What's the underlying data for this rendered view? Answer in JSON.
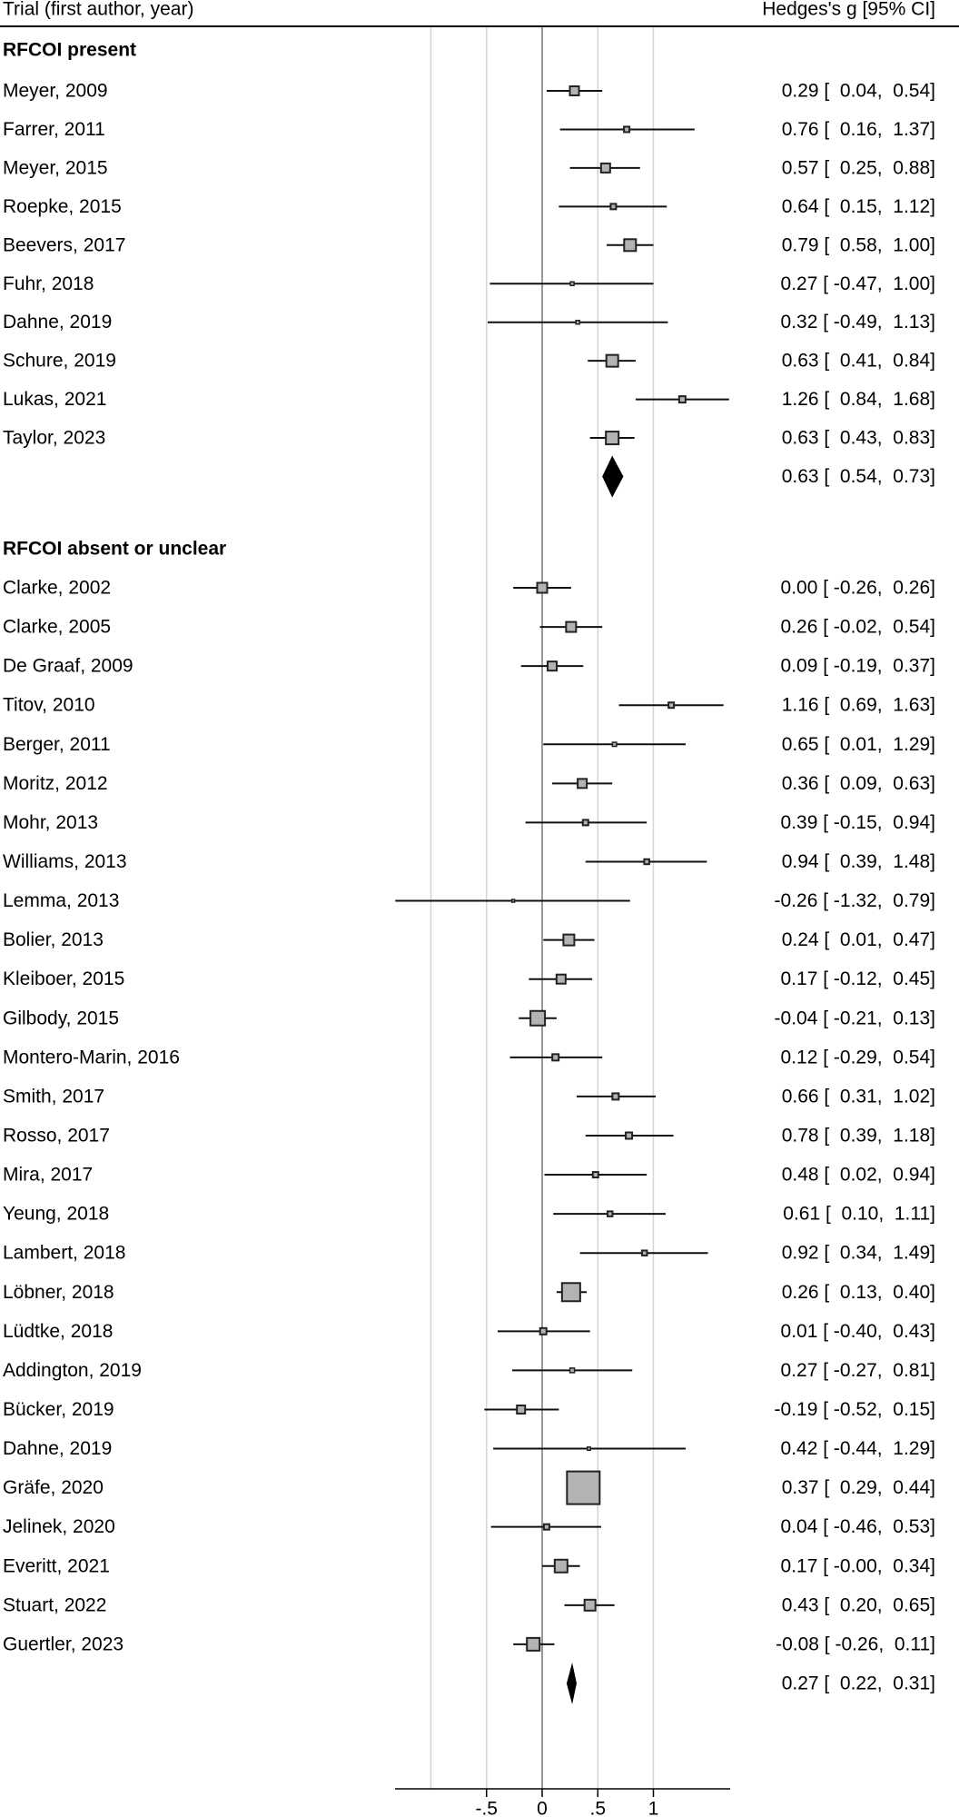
{
  "chart_data": {
    "type": "forest",
    "header": {
      "left": "Trial (first author, year)",
      "right": "Hedges's g [95% CI]"
    },
    "xlim": [
      -1.0,
      1.7
    ],
    "xticks": [
      -0.5,
      0,
      0.5,
      1
    ],
    "xtick_labels": [
      "-.5",
      "0",
      ".5",
      "1"
    ],
    "gridlines": [
      -1,
      -0.5,
      0.5,
      1
    ],
    "reference_line": 0,
    "colors": {
      "box": "#b3b3b3",
      "box_border": "#222222",
      "grid": "#d4d4d4",
      "ref": "#777777",
      "diamond": "#000000"
    },
    "groups": [
      {
        "label": "RFCOI present",
        "studies": [
          {
            "name": "Meyer, 2009",
            "g": 0.29,
            "lo": 0.04,
            "hi": 0.54,
            "ci_text": "0.29 [  0.04,  0.54]",
            "weight_rel": 1.0
          },
          {
            "name": "Farrer, 2011",
            "g": 0.76,
            "lo": 0.16,
            "hi": 1.37,
            "ci_text": "0.76 [  0.16,  1.37]",
            "weight_rel": 0.36
          },
          {
            "name": "Meyer, 2015",
            "g": 0.57,
            "lo": 0.25,
            "hi": 0.88,
            "ci_text": "0.57 [  0.25,  0.88]",
            "weight_rel": 1.0
          },
          {
            "name": "Roepke, 2015",
            "g": 0.64,
            "lo": 0.15,
            "hi": 1.12,
            "ci_text": "0.64 [  0.15,  1.12]",
            "weight_rel": 0.36
          },
          {
            "name": "Beevers, 2017",
            "g": 0.79,
            "lo": 0.58,
            "hi": 1.0,
            "ci_text": "0.79 [  0.58,  1.00]",
            "weight_rel": 1.69
          },
          {
            "name": "Fuhr, 2018",
            "g": 0.27,
            "lo": -0.47,
            "hi": 1.0,
            "ci_text": "0.27 [ -0.47,  1.00]",
            "weight_rel": 0.16
          },
          {
            "name": "Dahne, 2019",
            "g": 0.32,
            "lo": -0.49,
            "hi": 1.13,
            "ci_text": "0.32 [ -0.49,  1.13]",
            "weight_rel": 0.16
          },
          {
            "name": "Schure, 2019",
            "g": 0.63,
            "lo": 0.41,
            "hi": 0.84,
            "ci_text": "0.63 [  0.41,  0.84]",
            "weight_rel": 1.69
          },
          {
            "name": "Lukas, 2021",
            "g": 1.26,
            "lo": 0.84,
            "hi": 1.68,
            "ci_text": "1.26 [  0.84,  1.68]",
            "weight_rel": 0.49
          },
          {
            "name": "Taylor, 2023",
            "g": 0.63,
            "lo": 0.43,
            "hi": 0.83,
            "ci_text": "0.63 [  0.43,  0.83]",
            "weight_rel": 1.96
          }
        ],
        "pooled": {
          "g": 0.63,
          "lo": 0.54,
          "hi": 0.73,
          "ci_text": "0.63 [  0.54,  0.73]"
        }
      },
      {
        "label": "RFCOI absent or unclear",
        "studies": [
          {
            "name": "Clarke, 2002",
            "g": 0.0,
            "lo": -0.26,
            "hi": 0.26,
            "ci_text": "0.00 [ -0.26,  0.26]",
            "weight_rel": 1.21
          },
          {
            "name": "Clarke, 2005",
            "g": 0.26,
            "lo": -0.02,
            "hi": 0.54,
            "ci_text": "0.26 [ -0.02,  0.54]",
            "weight_rel": 1.21
          },
          {
            "name": "De Graaf, 2009",
            "g": 0.09,
            "lo": -0.19,
            "hi": 0.37,
            "ci_text": "0.09 [ -0.19,  0.37]",
            "weight_rel": 1.0
          },
          {
            "name": "Titov, 2010",
            "g": 1.16,
            "lo": 0.69,
            "hi": 1.63,
            "ci_text": "1.16 [  0.69,  1.63]",
            "weight_rel": 0.36
          },
          {
            "name": "Berger, 2011",
            "g": 0.65,
            "lo": 0.01,
            "hi": 1.29,
            "ci_text": "0.65 [  0.01,  1.29]",
            "weight_rel": 0.2
          },
          {
            "name": "Moritz, 2012",
            "g": 0.36,
            "lo": 0.09,
            "hi": 0.63,
            "ci_text": "0.36 [  0.09,  0.63]",
            "weight_rel": 1.0
          },
          {
            "name": "Mohr, 2013",
            "g": 0.39,
            "lo": -0.15,
            "hi": 0.94,
            "ci_text": "0.39 [ -0.15,  0.94]",
            "weight_rel": 0.36
          },
          {
            "name": "Williams, 2013",
            "g": 0.94,
            "lo": 0.39,
            "hi": 1.48,
            "ci_text": "0.94 [  0.39,  1.48]",
            "weight_rel": 0.3
          },
          {
            "name": "Lemma, 2013",
            "g": -0.26,
            "lo": -1.32,
            "hi": 0.79,
            "ci_text": "-0.26 [ -1.32,  0.79]",
            "weight_rel": 0.09
          },
          {
            "name": "Bolier, 2013",
            "g": 0.24,
            "lo": 0.01,
            "hi": 0.47,
            "ci_text": "0.24 [  0.01,  0.47]",
            "weight_rel": 1.44
          },
          {
            "name": "Kleiboer, 2015",
            "g": 0.17,
            "lo": -0.12,
            "hi": 0.45,
            "ci_text": "0.17 [ -0.12,  0.45]",
            "weight_rel": 1.0
          },
          {
            "name": "Gilbody, 2015",
            "g": -0.04,
            "lo": -0.21,
            "hi": 0.13,
            "ci_text": "-0.04 [ -0.21,  0.13]",
            "weight_rel": 2.56
          },
          {
            "name": "Montero-Marin, 2016",
            "g": 0.12,
            "lo": -0.29,
            "hi": 0.54,
            "ci_text": "0.12 [ -0.29,  0.54]",
            "weight_rel": 0.49
          },
          {
            "name": "Smith, 2017",
            "g": 0.66,
            "lo": 0.31,
            "hi": 1.02,
            "ci_text": "0.66 [  0.31,  1.02]",
            "weight_rel": 0.49
          },
          {
            "name": "Rosso, 2017",
            "g": 0.78,
            "lo": 0.39,
            "hi": 1.18,
            "ci_text": "0.78 [  0.39,  1.18]",
            "weight_rel": 0.49
          },
          {
            "name": "Mira, 2017",
            "g": 0.48,
            "lo": 0.02,
            "hi": 0.94,
            "ci_text": "0.48 [  0.02,  0.94]",
            "weight_rel": 0.36
          },
          {
            "name": "Yeung, 2018",
            "g": 0.61,
            "lo": 0.1,
            "hi": 1.11,
            "ci_text": "0.61 [  0.10,  1.11]",
            "weight_rel": 0.3
          },
          {
            "name": "Lambert, 2018",
            "g": 0.92,
            "lo": 0.34,
            "hi": 1.49,
            "ci_text": "0.92 [  0.34,  1.49]",
            "weight_rel": 0.3
          },
          {
            "name": "Löbner, 2018",
            "g": 0.26,
            "lo": 0.13,
            "hi": 0.4,
            "ci_text": "0.26 [  0.13,  0.40]",
            "weight_rel": 4.0
          },
          {
            "name": "Lüdtke, 2018",
            "g": 0.01,
            "lo": -0.4,
            "hi": 0.43,
            "ci_text": "0.01 [ -0.40,  0.43]",
            "weight_rel": 0.49
          },
          {
            "name": "Addington, 2019",
            "g": 0.27,
            "lo": -0.27,
            "hi": 0.81,
            "ci_text": "0.27 [ -0.27,  0.81]",
            "weight_rel": 0.25
          },
          {
            "name": "Bücker, 2019",
            "g": -0.19,
            "lo": -0.52,
            "hi": 0.15,
            "ci_text": "-0.19 [ -0.52,  0.15]",
            "weight_rel": 0.81
          },
          {
            "name": "Dahne, 2019",
            "g": 0.42,
            "lo": -0.44,
            "hi": 1.29,
            "ci_text": "0.42 [ -0.44,  1.29]",
            "weight_rel": 0.12
          },
          {
            "name": "Gräfe, 2020",
            "g": 0.37,
            "lo": 0.29,
            "hi": 0.44,
            "ci_text": "0.37 [  0.29,  0.44]",
            "weight_rel": 12.96
          },
          {
            "name": "Jelinek, 2020",
            "g": 0.04,
            "lo": -0.46,
            "hi": 0.53,
            "ci_text": "0.04 [ -0.46,  0.53]",
            "weight_rel": 0.36
          },
          {
            "name": "Everitt, 2021",
            "g": 0.17,
            "lo": -0.0,
            "hi": 0.34,
            "ci_text": "0.17 [ -0.00,  0.34]",
            "weight_rel": 1.96
          },
          {
            "name": "Stuart, 2022",
            "g": 0.43,
            "lo": 0.2,
            "hi": 0.65,
            "ci_text": "0.43 [  0.20,  0.65]",
            "weight_rel": 1.44
          },
          {
            "name": "Guertler, 2023",
            "g": -0.08,
            "lo": -0.26,
            "hi": 0.11,
            "ci_text": "-0.08 [ -0.26,  0.11]",
            "weight_rel": 1.96
          }
        ],
        "pooled": {
          "g": 0.27,
          "lo": 0.22,
          "hi": 0.31,
          "ci_text": "0.27 [  0.22,  0.31]"
        }
      }
    ]
  }
}
